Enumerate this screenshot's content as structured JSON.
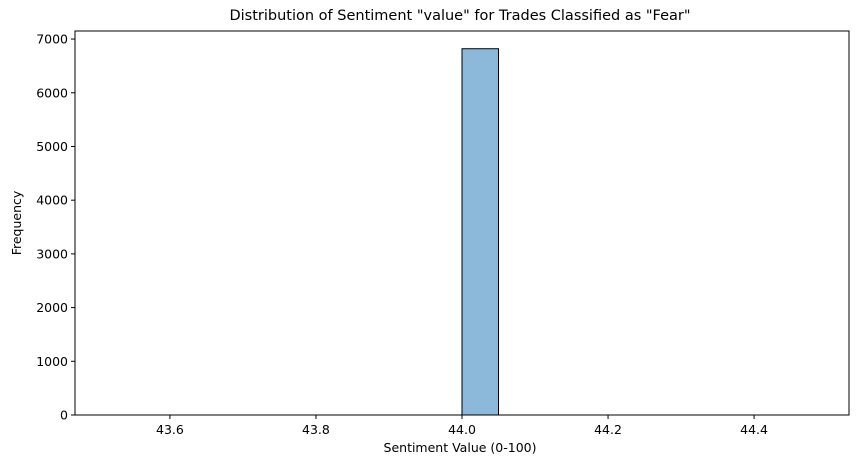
{
  "chart_data": {
    "type": "bar",
    "title": "Distribution of Sentiment \"value\" for Trades Classified as \"Fear\"",
    "xlabel": "Sentiment Value (0-100)",
    "ylabel": "Frequency",
    "xlim": [
      43.47,
      44.53
    ],
    "ylim": [
      0,
      7150
    ],
    "x_ticks": [
      "43.6",
      "43.8",
      "44.0",
      "44.2",
      "44.4"
    ],
    "y_ticks": [
      "0",
      "1000",
      "2000",
      "3000",
      "4000",
      "5000",
      "6000",
      "7000"
    ],
    "bins": {
      "edges": [
        43.5,
        43.55,
        43.6,
        43.65,
        43.7,
        43.75,
        43.8,
        43.85,
        43.9,
        43.95,
        44.0,
        44.05,
        44.1,
        44.15,
        44.2,
        44.25,
        44.3,
        44.35,
        44.4,
        44.45,
        44.5
      ],
      "counts": [
        0,
        0,
        0,
        0,
        0,
        0,
        0,
        0,
        0,
        0,
        6820,
        0,
        0,
        0,
        0,
        0,
        0,
        0,
        0,
        0
      ]
    },
    "grid": false,
    "legend": "none",
    "colors": {
      "bar_fill": "#8cb8d9",
      "bar_edge": "#000000"
    }
  }
}
